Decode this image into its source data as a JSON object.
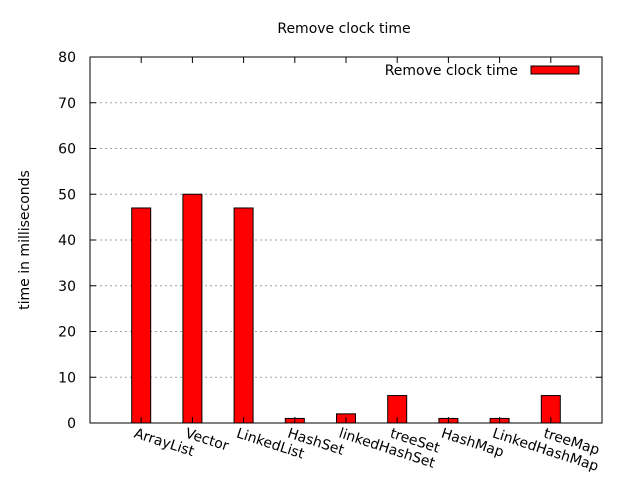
{
  "chart_data": {
    "type": "bar",
    "title": "Remove clock time",
    "xlabel": "",
    "ylabel": "time in milliseconds",
    "categories": [
      "ArrayList",
      "Vector",
      "LinkedList",
      "HashSet",
      "linkedHashSet",
      "treeSet",
      "HashMap",
      "LinkedHashMap",
      "treeMap"
    ],
    "series": [
      {
        "name": "Remove clock time",
        "values": [
          47,
          50,
          47,
          1,
          2,
          6,
          1,
          1,
          6
        ],
        "color": "#ff0000"
      }
    ],
    "ylim": [
      0,
      80
    ],
    "yticks": [
      0,
      10,
      20,
      30,
      40,
      50,
      60,
      70,
      80
    ],
    "grid": "horizontal dotted",
    "legend_position": "top-right",
    "xtick_rotation": "slanted"
  }
}
